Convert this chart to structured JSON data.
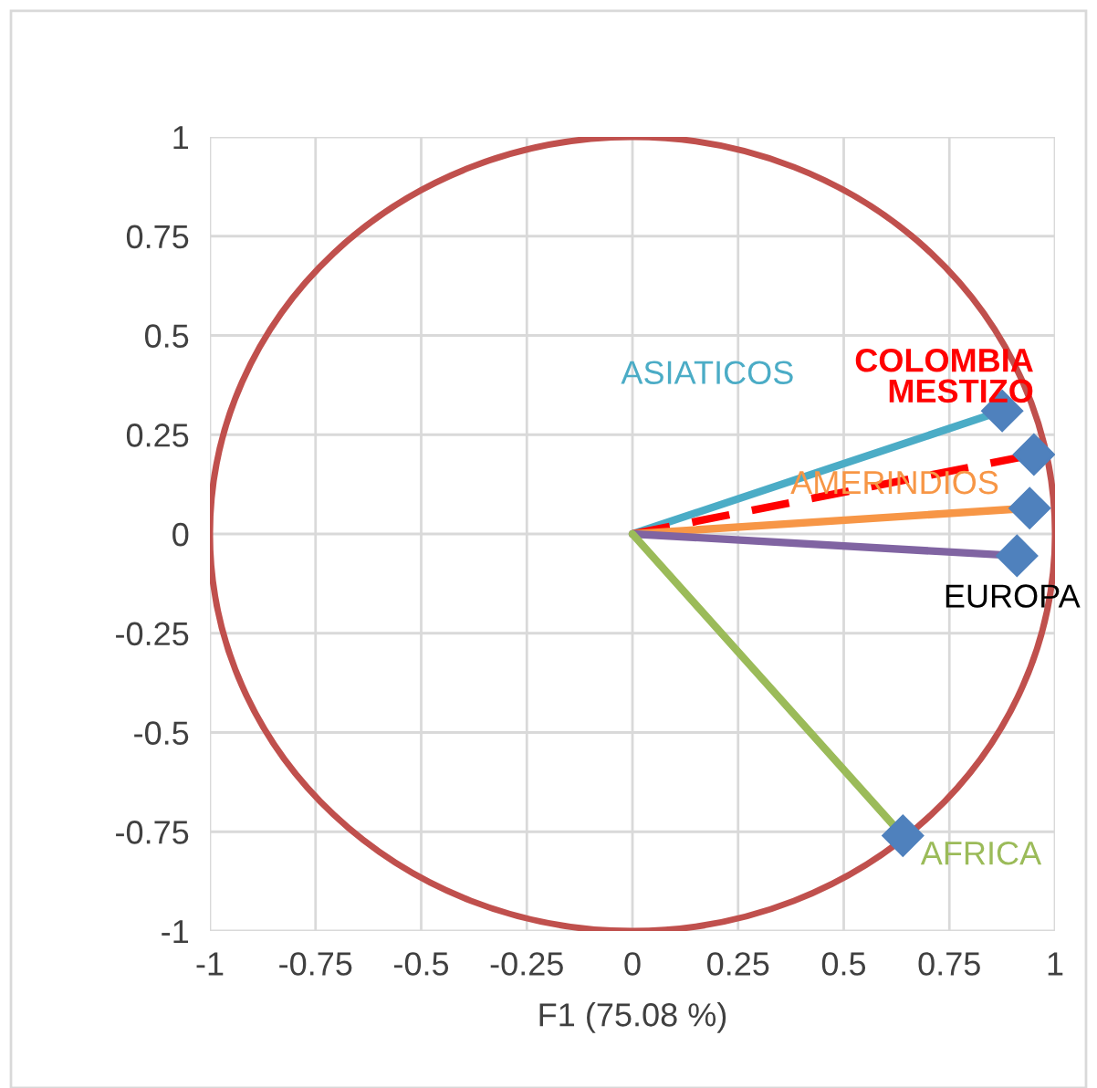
{
  "chart_data": {
    "type": "line",
    "xlabel": "F1 (75.08 %)",
    "xlim": [
      -1,
      1
    ],
    "ylim": [
      -1,
      1
    ],
    "xticks": [
      -1,
      -0.75,
      -0.5,
      -0.25,
      0,
      0.25,
      0.5,
      0.75,
      1
    ],
    "yticks": [
      -1,
      -0.75,
      -0.5,
      -0.25,
      0,
      0.25,
      0.5,
      0.75,
      1
    ],
    "grid": true,
    "marker": "diamond",
    "series": [
      {
        "name": "ASIATICOS",
        "color": "#4bacc6",
        "x": [
          0,
          0.875
        ],
        "values": [
          0,
          0.31
        ]
      },
      {
        "name": "COLOMBIA MESTIZO",
        "color": "#ff0000",
        "line_style": "dashed",
        "x": [
          0,
          0.95
        ],
        "values": [
          0,
          0.2
        ]
      },
      {
        "name": "AMERINDIOS",
        "color": "#f79646",
        "x": [
          0,
          0.94
        ],
        "values": [
          0,
          0.065
        ]
      },
      {
        "name": "EUROPA",
        "color": "#8064a2",
        "x": [
          0,
          0.91
        ],
        "values": [
          0,
          -0.055
        ]
      },
      {
        "name": "AFRICA",
        "color": "#9bbb59",
        "x": [
          0,
          0.64
        ],
        "values": [
          0,
          -0.76
        ]
      }
    ]
  }
}
